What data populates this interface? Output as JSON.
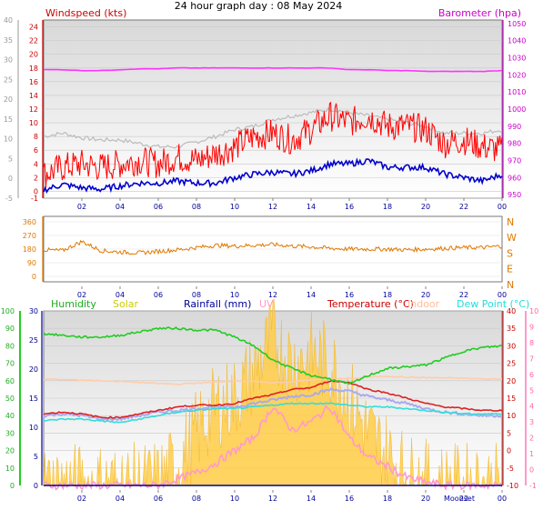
{
  "title": "24 hour graph day : 08 May 2024",
  "hour_labels": [
    "02",
    "04",
    "06",
    "08",
    "10",
    "12",
    "14",
    "16",
    "18",
    "20",
    "22",
    "00"
  ],
  "colors": {
    "wind": "#ff0000",
    "wind_avg": "#0000cc",
    "gust_trail": "#bbbbbb",
    "baro": "#ff33ff",
    "direction": "#e07800",
    "humidity": "#22cc22",
    "solar": "#ffcc44",
    "rain": "#000099",
    "uv": "#ff99cc",
    "temperature": "#dd2222",
    "indoor": "#ffccaa",
    "dewpoint": "#33dddd",
    "apparent": "#aaaaee"
  },
  "chart_data": [
    {
      "type": "line",
      "panel": "wind-baro",
      "legend_left": "Windspeed (kts)",
      "legend_right": "Barometer (hpa)",
      "y_left_ticks": [
        "-1",
        "0",
        "2",
        "4",
        "6",
        "8",
        "10",
        "12",
        "14",
        "16",
        "18",
        "20",
        "22",
        "24"
      ],
      "y_right_ticks": [
        "950",
        "960",
        "970",
        "980",
        "990",
        "1000",
        "1010",
        "1020",
        "1030",
        "1040",
        "1050"
      ],
      "y_outer_ticks": [
        "-5",
        "0",
        "5",
        "10",
        "15",
        "20",
        "25",
        "30",
        "35",
        "40"
      ],
      "ylim_left": [
        -1,
        25
      ],
      "ylim_right": [
        948,
        1052
      ],
      "x": [
        0,
        1,
        2,
        3,
        4,
        5,
        6,
        7,
        8,
        9,
        10,
        11,
        12,
        13,
        14,
        15,
        16,
        17,
        18,
        19,
        20,
        21,
        22,
        23,
        24
      ],
      "series": [
        {
          "key": "wind_avg",
          "values": [
            0.2,
            1.0,
            0.5,
            0.3,
            0.8,
            1.2,
            1.2,
            1.5,
            1.2,
            1.2,
            2.0,
            2.5,
            2.8,
            2.5,
            3.0,
            4.0,
            4.0,
            4.5,
            3.5,
            3.5,
            3.5,
            2.5,
            2.0,
            1.5,
            2.5
          ]
        },
        {
          "key": "wind_gust",
          "values": [
            2.5,
            3.5,
            4.0,
            3.5,
            4.0,
            4.5,
            4.0,
            5.0,
            4.5,
            5.5,
            6.5,
            8.0,
            8.5,
            7.5,
            9.0,
            11.0,
            10.0,
            11.0,
            9.5,
            9.5,
            9.0,
            7.0,
            7.5,
            6.5,
            6.0
          ]
        },
        {
          "key": "gust_trail",
          "values": [
            8.0,
            8.5,
            7.8,
            7.5,
            7.5,
            7.0,
            6.5,
            6.5,
            7.2,
            8.0,
            9.0,
            9.5,
            10.5,
            11.0,
            11.5,
            12.0,
            11.5,
            11.0,
            10.5,
            10.0,
            9.5,
            8.5,
            8.5,
            8.5,
            9.0
          ]
        },
        {
          "key": "baro",
          "values": [
            1023,
            1023,
            1022.5,
            1022.5,
            1023,
            1023.5,
            1023.5,
            1024,
            1024,
            1024,
            1024,
            1024,
            1024,
            1024,
            1024,
            1024,
            1023,
            1023,
            1022.5,
            1022.5,
            1022,
            1022,
            1022,
            1022,
            1022.5
          ]
        }
      ]
    },
    {
      "type": "line",
      "panel": "direction",
      "y_ticks": [
        "0",
        "90",
        "180",
        "270",
        "360"
      ],
      "compass": [
        "N",
        "W",
        "S",
        "E",
        "N"
      ],
      "ylim": [
        0,
        360
      ],
      "x": [
        0,
        1,
        2,
        3,
        4,
        5,
        6,
        7,
        8,
        9,
        10,
        11,
        12,
        13,
        14,
        15,
        16,
        17,
        18,
        19,
        20,
        21,
        22,
        23,
        24
      ],
      "series": [
        {
          "key": "direction",
          "values": [
            175,
            170,
            230,
            170,
            160,
            155,
            165,
            175,
            190,
            205,
            200,
            205,
            210,
            200,
            195,
            185,
            180,
            180,
            180,
            175,
            180,
            185,
            190,
            190,
            200
          ]
        }
      ]
    },
    {
      "type": "line",
      "panel": "climate",
      "legend": [
        "Humidity",
        "Solar",
        "Rainfall (mm)",
        "UV",
        "Temperature (°C)",
        "Indoor",
        "Dew Point (°C)"
      ],
      "y_humidity_ticks": [
        "0",
        "10",
        "20",
        "30",
        "40",
        "50",
        "60",
        "70",
        "80",
        "90",
        "100"
      ],
      "y_rain_ticks": [
        "0",
        "5",
        "10",
        "15",
        "20",
        "25",
        "30"
      ],
      "y_temp_ticks": [
        "-10",
        "-5",
        "0",
        "5",
        "10",
        "15",
        "20",
        "25",
        "30",
        "35",
        "40"
      ],
      "y_uv_ticks": [
        "-1",
        "0",
        "1",
        "2",
        "3",
        "4",
        "5",
        "6",
        "7",
        "8",
        "9",
        "10"
      ],
      "ylim_temp": [
        -10,
        40
      ],
      "ylim_humidity": [
        0,
        100
      ],
      "ylim_uv": [
        -1,
        10
      ],
      "moon_text": "Moonset",
      "x": [
        0,
        1,
        2,
        3,
        4,
        5,
        6,
        7,
        8,
        9,
        10,
        11,
        12,
        13,
        14,
        15,
        16,
        17,
        18,
        19,
        20,
        21,
        22,
        23,
        24
      ],
      "series": [
        {
          "key": "humidity",
          "values": [
            87,
            86,
            85,
            85,
            86,
            88,
            90,
            90,
            89,
            89,
            85,
            80,
            72,
            67,
            63,
            61,
            58,
            63,
            67,
            68,
            69,
            73,
            77,
            79,
            80
          ]
        },
        {
          "key": "temperature",
          "values": [
            10.5,
            11.0,
            10.5,
            9.5,
            9.5,
            10.5,
            11.5,
            12.5,
            13.0,
            13.0,
            13.5,
            15.0,
            16.0,
            17.5,
            18.0,
            20.0,
            19.5,
            17.5,
            16.5,
            15.0,
            13.5,
            12.5,
            12.0,
            11.5,
            11.5
          ]
        },
        {
          "key": "indoor",
          "values": [
            20.5,
            20.3,
            20.2,
            20.0,
            19.8,
            19.5,
            19.2,
            19.0,
            19.3,
            19.6,
            20.0,
            19.8,
            19.4,
            19.8,
            20.2,
            20.5,
            20.6,
            21.0,
            21.3,
            21.0,
            20.9,
            20.8,
            20.7,
            20.5,
            20.5
          ]
        },
        {
          "key": "dewpoint",
          "values": [
            8.5,
            9.0,
            9.0,
            8.5,
            8.0,
            9.0,
            10.0,
            11.0,
            11.5,
            12.0,
            12.0,
            12.5,
            13.0,
            13.5,
            13.5,
            13.5,
            13.0,
            12.5,
            12.5,
            12.0,
            11.5,
            11.0,
            10.5,
            10.5,
            10.5
          ]
        },
        {
          "key": "apparent",
          "values": [
            10.0,
            10.5,
            10.0,
            9.0,
            9.0,
            10.0,
            11.0,
            11.5,
            12.0,
            12.5,
            12.5,
            13.5,
            14.5,
            15.5,
            16.0,
            17.5,
            17.0,
            15.5,
            14.5,
            13.5,
            12.0,
            11.0,
            10.5,
            10.0,
            10.0
          ]
        },
        {
          "key": "solar",
          "values": [
            0,
            0,
            0,
            0,
            0,
            0,
            0.2,
            1.2,
            3.0,
            4.5,
            5.0,
            6.5,
            8.5,
            7.0,
            7.5,
            7.0,
            5.0,
            3.0,
            1.8,
            0.6,
            0.2,
            0,
            0,
            0,
            0
          ]
        },
        {
          "key": "uv",
          "values": [
            -1,
            -1,
            -1,
            -1,
            -1,
            -1,
            -1,
            -0.6,
            -0.2,
            0.4,
            1.2,
            2.0,
            4.0,
            2.5,
            3.0,
            4.0,
            2.0,
            0.8,
            0.2,
            -0.5,
            -0.8,
            -1,
            -1,
            -1,
            -1
          ]
        },
        {
          "key": "rain",
          "values": [
            0,
            0,
            0,
            0,
            0,
            0,
            0,
            0,
            0,
            0,
            0,
            0,
            0,
            0,
            0,
            0,
            0,
            0,
            0,
            0,
            0,
            0,
            0,
            0,
            0
          ]
        }
      ]
    }
  ]
}
